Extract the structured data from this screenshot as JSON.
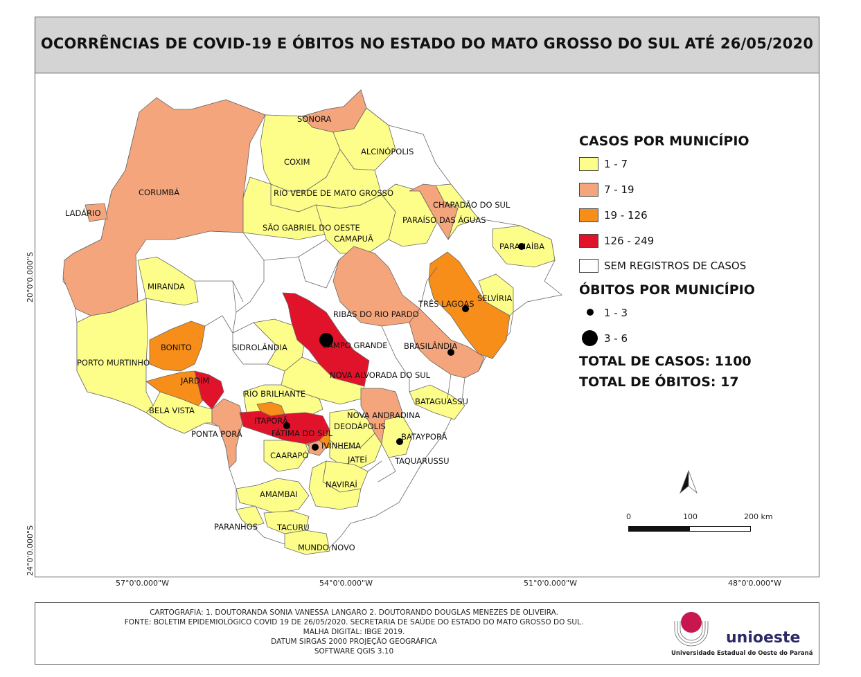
{
  "title": "OCORRÊNCIAS DE COVID-19 E ÓBITOS NO ESTADO DO MATO GROSSO DO SUL ATÉ 26/05/2020",
  "colors": {
    "c1_7": "#fdfd8a",
    "c7_19": "#f4a57c",
    "c19_126": "#f78e1a",
    "c126_249": "#e0132a",
    "none": "#ffffff"
  },
  "legend": {
    "cases_title": "CASOS POR MUNICÍPIO",
    "cases": [
      {
        "label": "1 - 7",
        "color": "#fdfd8a"
      },
      {
        "label": "7 - 19",
        "color": "#f4a57c"
      },
      {
        "label": "19 - 126",
        "color": "#f78e1a"
      },
      {
        "label": "126 - 249",
        "color": "#e0132a"
      },
      {
        "label": "SEM REGISTROS DE CASOS",
        "color": "#ffffff"
      }
    ],
    "deaths_title": "ÓBITOS POR MUNICÍPIO",
    "deaths": [
      {
        "label": "1 - 3"
      },
      {
        "label": "3 - 6"
      }
    ],
    "total_cases": "TOTAL DE CASOS: 1100",
    "total_deaths": "TOTAL DE ÓBITOS: 17"
  },
  "scale": {
    "l0": "0",
    "l100": "100",
    "l200": "200 km"
  },
  "coords": {
    "x": [
      "57°0'0.000\"W",
      "54°0'0.000\"W",
      "51°0'0.000\"W",
      "48°0'0.000\"W"
    ],
    "y": [
      "20°0'0.000\"S",
      "24°0'0.000\"S"
    ]
  },
  "municipalities": [
    "SONORA",
    "ALCINÓPOLIS",
    "COXIM",
    "RIO VERDE DE MATO GROSSO",
    "CORUMBÁ",
    "LADÁRIO",
    "CHAPADÃO DO SUL",
    "SÃO GABRIEL DO OESTE",
    "PARAÍSO DAS ÁGUAS",
    "CAMAPUÃ",
    "PARANAÍBA",
    "MIRANDA",
    "TRÊS LAGOAS",
    "SELVÍRIA",
    "RIBAS DO RIO PARDO",
    "BONITO",
    "SIDROLÂNDIA",
    "CAMPO GRANDE",
    "BRASILÂNDIA",
    "PORTO MURTINHO",
    "JARDIM",
    "NOVA ALVORADA DO SUL",
    "RIO BRILHANTE",
    "BATAGUASSU",
    "BELA VISTA",
    "ITAPORÃ",
    "NOVA ANDRADINA",
    "DEODÁPOLIS",
    "PONTA PORÃ",
    "FÁTIMA DO SUL",
    "BATAYPORÃ",
    "IVINHEMA",
    "CAARAPÓ",
    "JATEÍ",
    "TAQUARUSSU",
    "NAVIRAÍ",
    "AMAMBAI",
    "PARANHOS",
    "TACURU",
    "MUNDO NOVO"
  ],
  "credits": [
    "CARTOGRAFIA:  1. DOUTORANDA SONIA VANESSA LANGARO     2. DOUTORANDO DOUGLAS MENEZES DE OLIVEIRA.",
    "FONTE: BOLETIM EPIDEMIOLÓGICO COVID 19 DE 26/05/2020. SECRETARIA DE SAÚDE DO ESTADO DO MATO GROSSO DO SUL.",
    "MALHA DIGITAL: IBGE 2019.",
    "DATUM SIRGAS 2000 PROJEÇÃO GEOGRÁFICA",
    "SOFTWARE QGIS 3.10"
  ],
  "logo": {
    "name": "unioeste",
    "subtitle": "Universidade Estadual do Oeste do Paraná"
  }
}
